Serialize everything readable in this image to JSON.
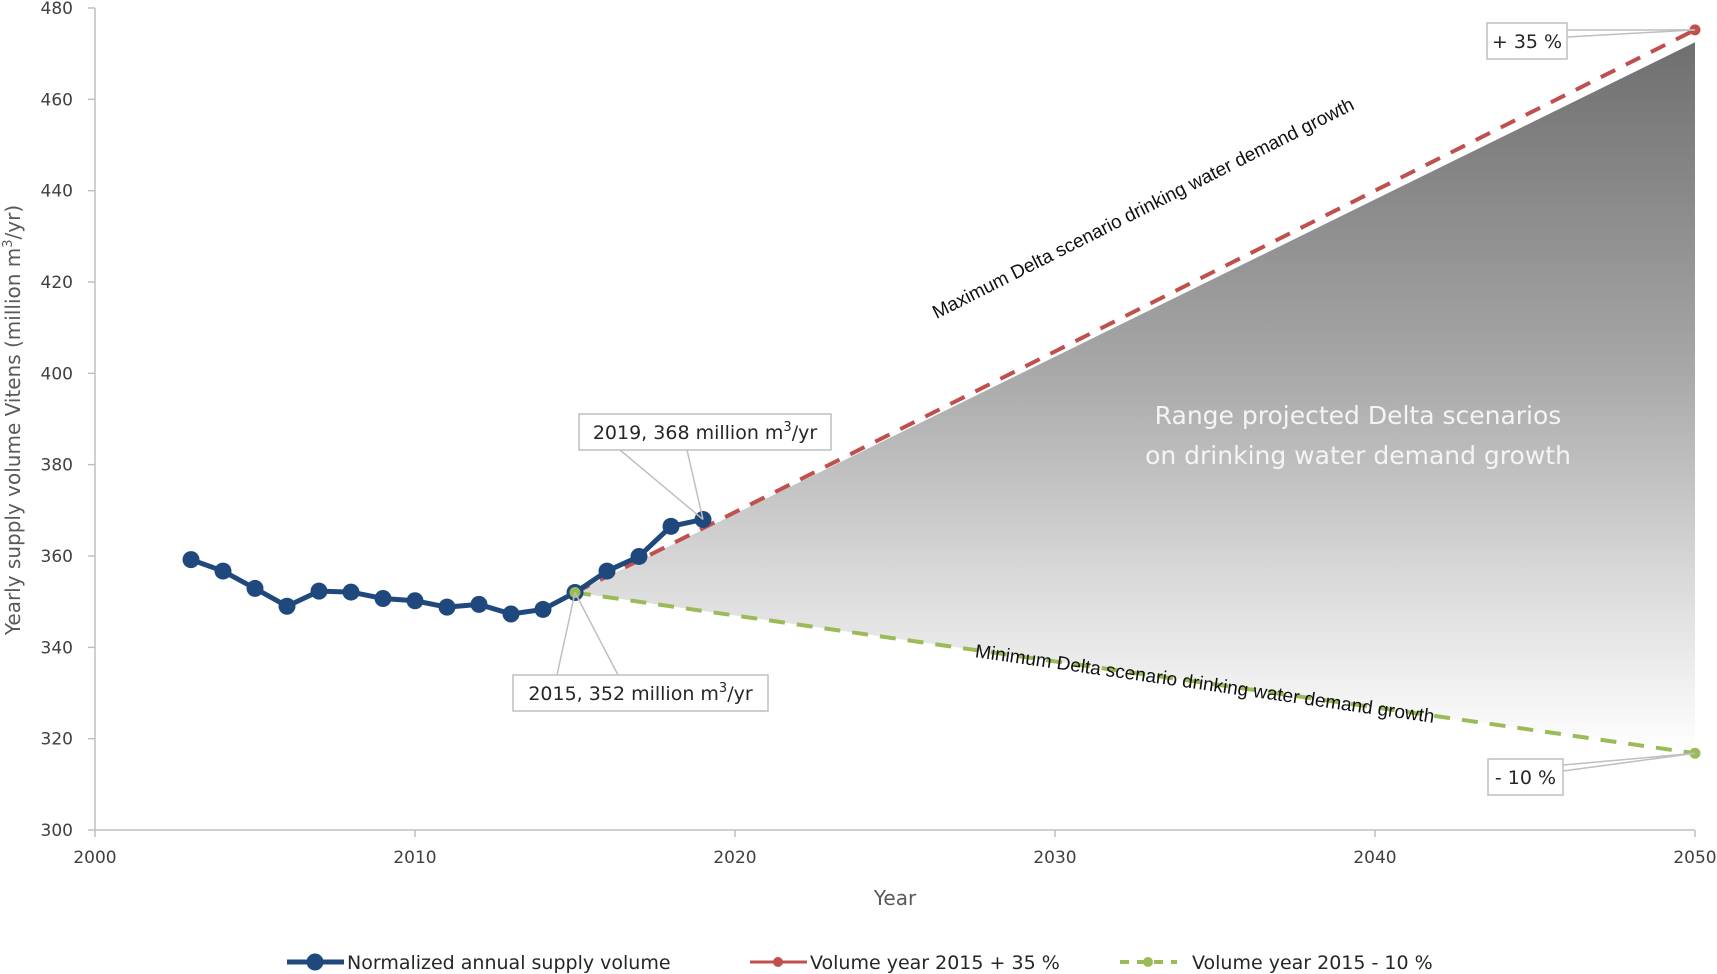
{
  "chart_data": {
    "type": "line",
    "title": "",
    "xlabel": "Year",
    "ylabel": "Yearly supply volume Vitens (million m³/yr)",
    "ylabel_parts": {
      "main": "Yearly supply volume Vitens (million m",
      "sup": "3",
      "tail": "/yr)"
    },
    "xlim": [
      2000,
      2050
    ],
    "ylim": [
      300,
      480
    ],
    "x_ticks": [
      2000,
      2010,
      2020,
      2030,
      2040,
      2050
    ],
    "y_ticks": [
      300,
      320,
      340,
      360,
      380,
      400,
      420,
      440,
      460,
      480
    ],
    "grid": false,
    "legend_position": "bottom",
    "series": [
      {
        "name": "Normalized annual supply volume",
        "color": "#1f497d",
        "style": "solid-markers",
        "x": [
          2003,
          2004,
          2005,
          2006,
          2007,
          2008,
          2009,
          2010,
          2011,
          2012,
          2013,
          2014,
          2015,
          2016,
          2017,
          2018,
          2019
        ],
        "values": [
          359.2,
          356.7,
          352.9,
          349.0,
          352.3,
          352.1,
          350.7,
          350.2,
          348.8,
          349.4,
          347.3,
          348.3,
          352.0,
          356.7,
          359.9,
          366.5,
          368.0
        ]
      },
      {
        "name": "Volume year 2015 + 35 %",
        "color": "#c0504d",
        "style": "dashed",
        "x": [
          2015,
          2050
        ],
        "values": [
          352.0,
          475.2
        ]
      },
      {
        "name": "Volume year 2015 - 10 %",
        "color": "#9bbb59",
        "style": "dashed",
        "x": [
          2015,
          2050
        ],
        "values": [
          352.0,
          316.8
        ]
      }
    ],
    "range_area": {
      "label_line1": "Range projected Delta scenarios",
      "label_line2": "on drinking water demand growth",
      "x": [
        2015,
        2050
      ],
      "upper": [
        352.0,
        472.5
      ],
      "lower": [
        352.0,
        316.8
      ]
    },
    "annotations": [
      {
        "id": "anno-2019",
        "text_main": "2019, 368 million m",
        "sup": "3",
        "tail": "/yr",
        "x": 2019,
        "y": 368.0
      },
      {
        "id": "anno-2015",
        "text_main": "2015, 352 million m",
        "sup": "3",
        "tail": "/yr",
        "x": 2015,
        "y": 352.0
      },
      {
        "id": "anno-plus35",
        "text_main": "+ 35 %",
        "x": 2050,
        "y": 475.2
      },
      {
        "id": "anno-minus10",
        "text_main": "- 10 %",
        "x": 2050,
        "y": 316.8
      }
    ],
    "scenario_labels": {
      "max": "Maximum Delta scenario drinking water demand growth",
      "min": "Minimum Delta scenario drinking water demand growth"
    }
  }
}
